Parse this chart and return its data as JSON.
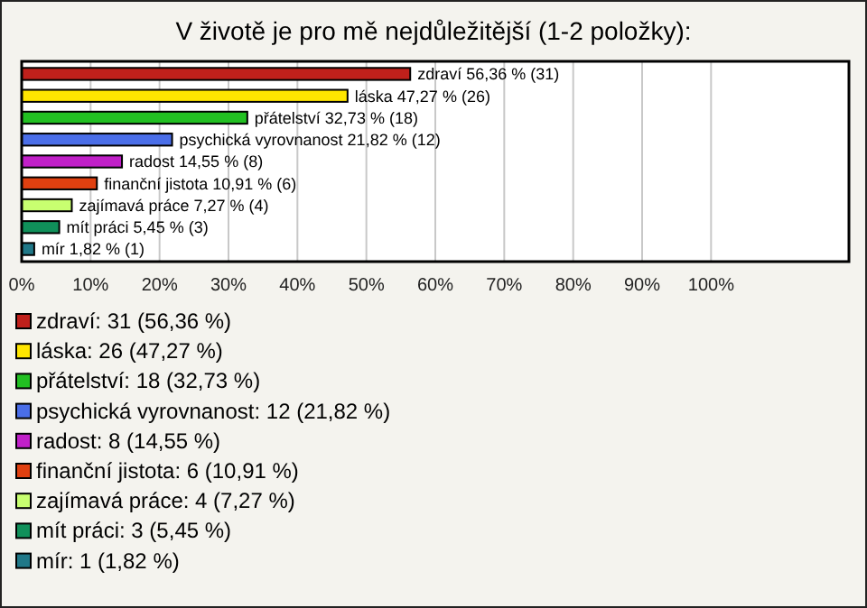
{
  "chart_data": {
    "type": "bar",
    "orientation": "horizontal",
    "stacked": true,
    "title": "V životě je pro mě nejdůležitější (1-2 položky):",
    "categories": [
      null,
      null,
      null,
      null,
      null,
      null,
      null,
      null,
      null
    ],
    "series": [
      {
        "name": "zdraví: 31 (56,36 %)",
        "color": "#c0201b",
        "values": [
          56.36,
          null,
          null,
          null,
          null,
          null,
          null,
          null,
          null
        ],
        "value_labels": [
          "zdraví 56,36 % (31)",
          null,
          null,
          null,
          null,
          null,
          null,
          null,
          null
        ]
      },
      {
        "name": "láska: 26 (47,27 %)",
        "color": "#ffe600",
        "values": [
          null,
          47.27,
          null,
          null,
          null,
          null,
          null,
          null,
          null
        ],
        "value_labels": [
          null,
          "láska 47,27 % (26)",
          null,
          null,
          null,
          null,
          null,
          null,
          null
        ]
      },
      {
        "name": "přátelství: 18 (32,73 %)",
        "color": "#22c022",
        "values": [
          null,
          null,
          32.73,
          null,
          null,
          null,
          null,
          null,
          null
        ],
        "value_labels": [
          null,
          null,
          "přátelství 32,73 % (18)",
          null,
          null,
          null,
          null,
          null,
          null
        ]
      },
      {
        "name": "psychická vyrovnanost: 12 (21,82 %)",
        "color": "#4a6ee8",
        "values": [
          null,
          null,
          null,
          21.82,
          null,
          null,
          null,
          null,
          null
        ],
        "value_labels": [
          null,
          null,
          null,
          "psychická vyrovnanost 21,82 % (12)",
          null,
          null,
          null,
          null,
          null
        ]
      },
      {
        "name": "radost: 8 (14,55 %)",
        "color": "#c020c8",
        "values": [
          null,
          null,
          null,
          null,
          14.55,
          null,
          null,
          null,
          null
        ],
        "value_labels": [
          null,
          null,
          null,
          null,
          "radost 14,55 % (8)",
          null,
          null,
          null,
          null
        ]
      },
      {
        "name": "finanční jistota: 6 (10,91 %)",
        "color": "#e04010",
        "values": [
          null,
          null,
          null,
          null,
          null,
          10.91,
          null,
          null,
          null
        ],
        "value_labels": [
          null,
          null,
          null,
          null,
          null,
          "finanční jistota 10,91 % (6)",
          null,
          null,
          null
        ]
      },
      {
        "name": "zajímavá práce: 4 (7,27 %)",
        "color": "#c8ff70",
        "values": [
          null,
          null,
          null,
          null,
          null,
          null,
          7.27,
          null,
          null
        ],
        "value_labels": [
          null,
          null,
          null,
          null,
          null,
          null,
          "zajímavá práce 7,27 % (4)",
          null,
          null
        ]
      },
      {
        "name": "mít práci: 3 (5,45 %)",
        "color": "#10905a",
        "values": [
          null,
          null,
          null,
          null,
          null,
          null,
          null,
          5.45,
          null
        ],
        "value_labels": [
          null,
          null,
          null,
          null,
          null,
          null,
          null,
          "mít práci 5,45 % (3)",
          null
        ]
      },
      {
        "name": "mír: 1 (1,82 %)",
        "color": "#207888",
        "values": [
          null,
          null,
          null,
          null,
          null,
          null,
          null,
          null,
          1.82
        ],
        "value_labels": [
          null,
          null,
          null,
          null,
          null,
          null,
          null,
          null,
          "mír 1,82 % (1)"
        ]
      }
    ],
    "xlim": [
      0,
      120
    ],
    "xticks": [
      {
        "value": 0,
        "label": "0%"
      },
      {
        "value": 10,
        "label": "10%"
      },
      {
        "value": 20,
        "label": "20%"
      },
      {
        "value": 30,
        "label": "30%"
      },
      {
        "value": 40,
        "label": "40%"
      },
      {
        "value": 50,
        "label": "50%"
      },
      {
        "value": 60,
        "label": "60%"
      },
      {
        "value": 70,
        "label": "70%"
      },
      {
        "value": 80,
        "label": "80%"
      },
      {
        "value": 90,
        "label": "90%"
      },
      {
        "value": 100,
        "label": "100%"
      }
    ],
    "grid": "x",
    "legend": "bottom left",
    "tick_labels": "x"
  }
}
